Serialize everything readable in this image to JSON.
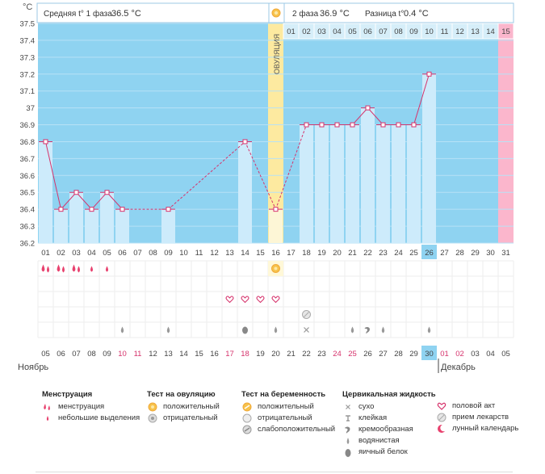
{
  "y_unit": "°C",
  "header": {
    "phase1_label": "Средняя t° 1 фаза",
    "phase1_value": "36.5 °C",
    "phase2_label": "2 фаза",
    "phase2_value": "36.9 °C",
    "diff_label": "Разница t°",
    "diff_value": "0.4 °C"
  },
  "ovulation_label": "ОВУЛЯЦИЯ",
  "months": {
    "left": "Ноябрь",
    "right": "Декабрь"
  },
  "colors": {
    "phase_bg": "#8fd3f1",
    "bar": "#cdebfb",
    "line": "#d6336c",
    "ovulation": "#fdeaa0",
    "pink": "#fbb6cc",
    "highlight": "#8fd3f1",
    "weekend": "#d6336c"
  },
  "chart_data": {
    "type": "line",
    "y_ticks": [
      "37.5",
      "37.4",
      "37.3",
      "37.2",
      "37.1",
      "37",
      "36.9",
      "36.8",
      "36.7",
      "36.6",
      "36.5",
      "36.4",
      "36.3",
      "36.2"
    ],
    "ylim": [
      36.2,
      37.5
    ],
    "cycle_days": [
      "01",
      "02",
      "03",
      "04",
      "05",
      "06",
      "07",
      "08",
      "09",
      "10",
      "11",
      "12",
      "13",
      "14",
      "15",
      "16",
      "17",
      "18",
      "19",
      "20",
      "21",
      "22",
      "23",
      "24",
      "25",
      "26",
      "27",
      "28",
      "29",
      "30",
      "31"
    ],
    "phase2_days": [
      "01",
      "02",
      "03",
      "04",
      "05",
      "06",
      "07",
      "08",
      "09",
      "10",
      "11",
      "12",
      "13",
      "14",
      "15"
    ],
    "calendar_dates": [
      "05",
      "06",
      "07",
      "08",
      "09",
      "10",
      "11",
      "12",
      "13",
      "14",
      "15",
      "16",
      "17",
      "18",
      "19",
      "20",
      "21",
      "22",
      "23",
      "24",
      "25",
      "26",
      "27",
      "28",
      "29",
      "30",
      "01",
      "02",
      "03",
      "04",
      "05"
    ],
    "weekend_dates_idx": [
      5,
      6,
      12,
      13,
      19,
      20,
      26,
      27
    ],
    "highlight_cycle_day_idx": 25,
    "highlight_date_idx": 25,
    "ovulation_day_idx": 15,
    "series": [
      {
        "values": [
          36.8,
          36.4,
          36.5,
          36.4,
          36.5,
          36.4,
          null,
          null,
          36.4,
          null,
          null,
          null,
          null,
          36.8,
          null,
          36.4,
          null,
          36.9,
          36.9,
          36.9,
          36.9,
          37.0,
          36.9,
          36.9,
          36.9,
          37.2,
          null,
          null,
          null,
          null,
          null
        ]
      }
    ]
  },
  "symptoms": {
    "menstruation": [
      2,
      2,
      2,
      1,
      1,
      0,
      0,
      0,
      0,
      0,
      0,
      0,
      0,
      0,
      0,
      0,
      0,
      0,
      0,
      0,
      0,
      0,
      0,
      0,
      0,
      0,
      0,
      0,
      0,
      0,
      0
    ],
    "ovulation_test_positive_idx": [
      15
    ],
    "sex_idx": [
      12,
      13,
      14,
      15
    ],
    "pregnancy_idx": [
      17
    ],
    "fluid": {
      "5": "watery",
      "8": "watery",
      "13": "egg-white",
      "15": "watery",
      "17": "dry",
      "20": "watery",
      "21": "creamy",
      "22": "watery",
      "25": "watery"
    }
  },
  "legend": {
    "menstruation": {
      "title": "Менструация",
      "items": [
        "менструация",
        "небольшие выделения"
      ]
    },
    "ovulation_test": {
      "title": "Тест на овуляцию",
      "items": [
        "положительный",
        "отрицательный"
      ]
    },
    "pregnancy_test": {
      "title": "Тест на беременность",
      "items": [
        "положительный",
        "отрицательный",
        "слабоположительный"
      ]
    },
    "cervical": {
      "title": "Цервикальная жидкость",
      "items": [
        "сухо",
        "клейкая",
        "кремообразная",
        "водянистая",
        "яичный белок"
      ]
    },
    "other": {
      "items": [
        "половой акт",
        "прием лекарств",
        "лунный календарь"
      ]
    }
  }
}
